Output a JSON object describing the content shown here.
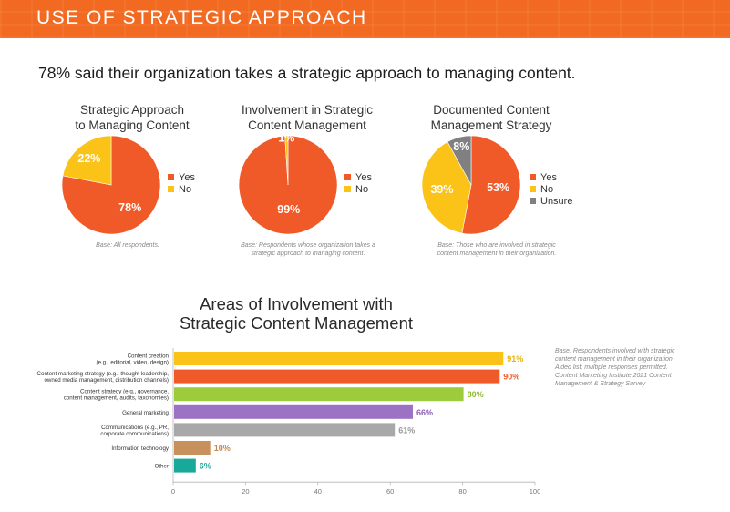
{
  "header": {
    "title": "USE OF STRATEGIC APPROACH"
  },
  "headline": "78% said their organization takes a strategic approach to managing content.",
  "colors": {
    "orange": "#f05a28",
    "yellow": "#fbc318",
    "gray": "#808080"
  },
  "chart_data": [
    {
      "type": "pie",
      "title": "Strategic Approach\nto Managing Content",
      "slices": [
        {
          "label": "Yes",
          "value": 78,
          "text": "78%",
          "color": "#f05a28"
        },
        {
          "label": "No",
          "value": 22,
          "text": "22%",
          "color": "#fbc318"
        }
      ],
      "legend": [
        "Yes",
        "No"
      ],
      "base_note": "Base: All respondents."
    },
    {
      "type": "pie",
      "title": "Involvement in Strategic\nContent Management",
      "slices": [
        {
          "label": "Yes",
          "value": 99,
          "text": "99%",
          "color": "#f05a28"
        },
        {
          "label": "No",
          "value": 1,
          "text": "1%",
          "color": "#fbc318"
        }
      ],
      "legend": [
        "Yes",
        "No"
      ],
      "base_note": "Base: Respondents whose organization takes a\nstrategic approach to managing content."
    },
    {
      "type": "pie",
      "title": "Documented Content\nManagement Strategy",
      "slices": [
        {
          "label": "Yes",
          "value": 53,
          "text": "53%",
          "color": "#f05a28"
        },
        {
          "label": "No",
          "value": 39,
          "text": "39%",
          "color": "#fbc318"
        },
        {
          "label": "Unsure",
          "value": 8,
          "text": "8%",
          "color": "#808080"
        }
      ],
      "legend": [
        "Yes",
        "No",
        "Unsure"
      ],
      "base_note": "Base: Those who are involved in strategic\ncontent management in their organization."
    },
    {
      "type": "bar",
      "orientation": "horizontal",
      "title": "Areas of Involvement with\nStrategic Content Management",
      "categories": [
        "Content creation\n(e.g., editorial, video, design)",
        "Content marketing strategy (e.g., thought leadership,\nowned media management, distribution channels)",
        "Content strategy (e.g., governance,\ncontent management, audits, taxonomies)",
        "General marketing",
        "Communications (e.g., PR,\ncorporate communications)",
        "Information technology",
        "Other"
      ],
      "values": [
        91,
        90,
        80,
        66,
        61,
        10,
        6
      ],
      "value_labels": [
        "91%",
        "90%",
        "80%",
        "66%",
        "61%",
        "10%",
        "6%"
      ],
      "colors": [
        "#fbc318",
        "#f05a28",
        "#9ccc3b",
        "#9b72c4",
        "#a8a8a8",
        "#c8915c",
        "#17a99a"
      ],
      "label_colors": [
        "#e8b10c",
        "#f05a28",
        "#8dbb2f",
        "#8a62b3",
        "#999999",
        "#c08a55",
        "#17a99a"
      ],
      "xlim": [
        0,
        100
      ],
      "xticks": [
        0,
        20,
        40,
        60,
        80,
        100
      ],
      "note": "Base: Respondents involved with strategic\ncontent management in their organization.\nAided list; multiple responses permitted.\nContent Marketing Institute 2021 Content\nManagement & Strategy Survey"
    }
  ]
}
